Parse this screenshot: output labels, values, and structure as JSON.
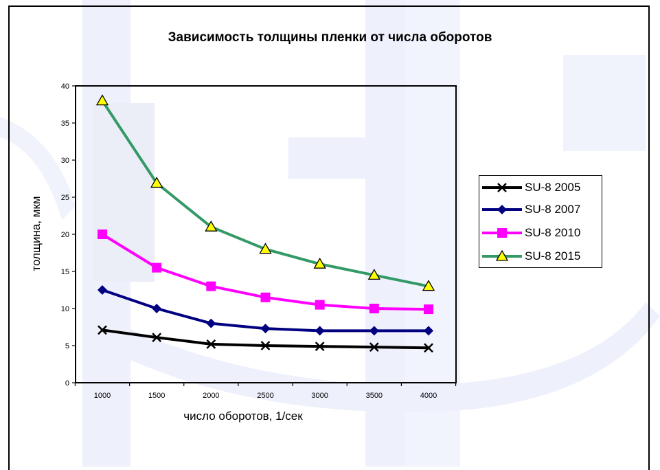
{
  "chart_data": {
    "type": "line",
    "title": "Зависимость толщины пленки от числа оборотов",
    "xlabel": "число оборотов, 1/сек",
    "ylabel": "толщина, мкм",
    "categories": [
      "1000",
      "1500",
      "2000",
      "2500",
      "3000",
      "3500",
      "4000"
    ],
    "ylim": [
      0,
      40
    ],
    "yticks": [
      "0",
      "5",
      "10",
      "15",
      "20",
      "25",
      "30",
      "35",
      "40"
    ],
    "grid": false,
    "legend_position": "right",
    "series": [
      {
        "name": "SU-8 2005",
        "values": [
          7.1,
          6.1,
          5.2,
          5.0,
          4.9,
          4.8,
          4.7
        ],
        "color": "#000000",
        "marker": "x"
      },
      {
        "name": "SU-8 2007",
        "values": [
          12.5,
          10.0,
          8.0,
          7.3,
          7.0,
          7.0,
          7.0
        ],
        "color": "#000080",
        "marker": "diamond"
      },
      {
        "name": "SU-8 2010",
        "values": [
          20.0,
          15.5,
          13.0,
          11.5,
          10.5,
          10.0,
          9.9
        ],
        "color": "#FF00FF",
        "marker": "square"
      },
      {
        "name": "SU-8 2015",
        "values": [
          38.0,
          26.9,
          21.0,
          18.0,
          16.0,
          14.5,
          13.0
        ],
        "color": "#339966",
        "marker": "triangle",
        "marker_fill": "#FFFF00"
      }
    ]
  }
}
